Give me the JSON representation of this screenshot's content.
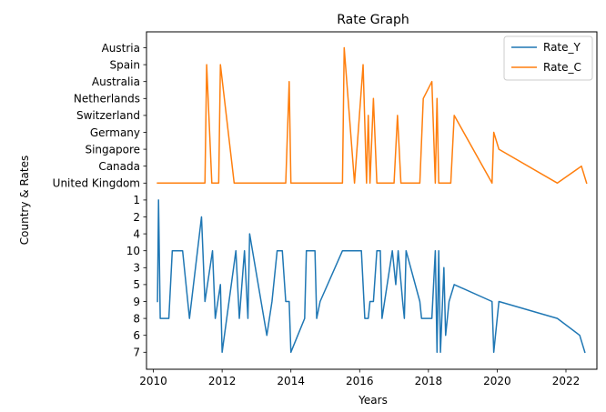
{
  "chart_data": {
    "type": "line",
    "title": "Rate Graph",
    "xlabel": "Years",
    "ylabel": "Country & Rates",
    "xlim": [
      2009.8,
      2022.9
    ],
    "xticks": [
      2010,
      2012,
      2014,
      2016,
      2018,
      2020,
      2022
    ],
    "xtick_labels": [
      "2010",
      "2012",
      "2014",
      "2016",
      "2018",
      "2020",
      "2022"
    ],
    "categories": [
      "7",
      "6",
      "8",
      "9",
      "5",
      "3",
      "10",
      "4",
      "2",
      "1",
      "United Kingdom",
      "Canada",
      "Singapore",
      "Germany",
      "Switzerland",
      "Netherlands",
      "Australia",
      "Spain",
      "Austria"
    ],
    "legend": {
      "position": "top-right",
      "entries": [
        "Rate_Y",
        "Rate_C"
      ]
    },
    "grid": false,
    "series": [
      {
        "name": "Rate_Y",
        "color": "#1f77b4",
        "points": [
          [
            2010.12,
            "9"
          ],
          [
            2010.15,
            "1"
          ],
          [
            2010.2,
            "8"
          ],
          [
            2010.45,
            "8"
          ],
          [
            2010.55,
            "10"
          ],
          [
            2010.85,
            "10"
          ],
          [
            2011.05,
            "8"
          ],
          [
            2011.4,
            "2"
          ],
          [
            2011.5,
            "9"
          ],
          [
            2011.72,
            "10"
          ],
          [
            2011.8,
            "8"
          ],
          [
            2011.95,
            "5"
          ],
          [
            2012.0,
            "7"
          ],
          [
            2012.4,
            "10"
          ],
          [
            2012.5,
            "8"
          ],
          [
            2012.65,
            "10"
          ],
          [
            2012.75,
            "8"
          ],
          [
            2012.8,
            "4"
          ],
          [
            2013.3,
            "6"
          ],
          [
            2013.45,
            "9"
          ],
          [
            2013.6,
            "10"
          ],
          [
            2013.75,
            "10"
          ],
          [
            2013.85,
            "9"
          ],
          [
            2013.95,
            "9"
          ],
          [
            2014.0,
            "7"
          ],
          [
            2014.2,
            "6"
          ],
          [
            2014.4,
            "8"
          ],
          [
            2014.45,
            "10"
          ],
          [
            2014.7,
            "10"
          ],
          [
            2014.75,
            "8"
          ],
          [
            2014.85,
            "9"
          ],
          [
            2015.5,
            "10"
          ],
          [
            2016.05,
            "10"
          ],
          [
            2016.15,
            "8"
          ],
          [
            2016.25,
            "8"
          ],
          [
            2016.3,
            "9"
          ],
          [
            2016.4,
            "9"
          ],
          [
            2016.5,
            "10"
          ],
          [
            2016.6,
            "10"
          ],
          [
            2016.65,
            "8"
          ],
          [
            2016.95,
            "10"
          ],
          [
            2017.05,
            "5"
          ],
          [
            2017.12,
            "10"
          ],
          [
            2017.25,
            "9"
          ],
          [
            2017.3,
            "8"
          ],
          [
            2017.35,
            "10"
          ],
          [
            2017.75,
            "9"
          ],
          [
            2017.8,
            "8"
          ],
          [
            2018.1,
            "8"
          ],
          [
            2018.2,
            "10"
          ],
          [
            2018.25,
            "7"
          ],
          [
            2018.3,
            "10"
          ],
          [
            2018.35,
            "7"
          ],
          [
            2018.45,
            "3"
          ],
          [
            2018.5,
            "6"
          ],
          [
            2018.6,
            "9"
          ],
          [
            2018.75,
            "5"
          ],
          [
            2019.85,
            "9"
          ],
          [
            2019.9,
            "7"
          ],
          [
            2020.05,
            "9"
          ],
          [
            2021.75,
            "8"
          ],
          [
            2022.4,
            "6"
          ],
          [
            2022.55,
            "7"
          ]
        ]
      },
      {
        "name": "Rate_C",
        "color": "#ff7f0e",
        "points": [
          [
            2010.12,
            "United Kingdom"
          ],
          [
            2011.5,
            "United Kingdom"
          ],
          [
            2011.55,
            "Spain"
          ],
          [
            2011.7,
            "United Kingdom"
          ],
          [
            2011.9,
            "United Kingdom"
          ],
          [
            2011.95,
            "Spain"
          ],
          [
            2012.35,
            "United Kingdom"
          ],
          [
            2013.85,
            "United Kingdom"
          ],
          [
            2013.95,
            "Australia"
          ],
          [
            2014.0,
            "United Kingdom"
          ],
          [
            2015.5,
            "United Kingdom"
          ],
          [
            2015.55,
            "Austria"
          ],
          [
            2015.85,
            "United Kingdom"
          ],
          [
            2016.1,
            "Spain"
          ],
          [
            2016.2,
            "United Kingdom"
          ],
          [
            2016.25,
            "Switzerland"
          ],
          [
            2016.3,
            "United Kingdom"
          ],
          [
            2016.4,
            "Netherlands"
          ],
          [
            2016.5,
            "United Kingdom"
          ],
          [
            2017.0,
            "United Kingdom"
          ],
          [
            2017.1,
            "Switzerland"
          ],
          [
            2017.2,
            "United Kingdom"
          ],
          [
            2017.75,
            "United Kingdom"
          ],
          [
            2017.85,
            "Netherlands"
          ],
          [
            2018.1,
            "Australia"
          ],
          [
            2018.2,
            "United Kingdom"
          ],
          [
            2018.25,
            "Netherlands"
          ],
          [
            2018.3,
            "United Kingdom"
          ],
          [
            2018.65,
            "United Kingdom"
          ],
          [
            2018.75,
            "Switzerland"
          ],
          [
            2019.85,
            "United Kingdom"
          ],
          [
            2019.9,
            "Germany"
          ],
          [
            2020.05,
            "Singapore"
          ],
          [
            2021.75,
            "United Kingdom"
          ],
          [
            2022.45,
            "Canada"
          ],
          [
            2022.6,
            "United Kingdom"
          ]
        ]
      }
    ]
  }
}
